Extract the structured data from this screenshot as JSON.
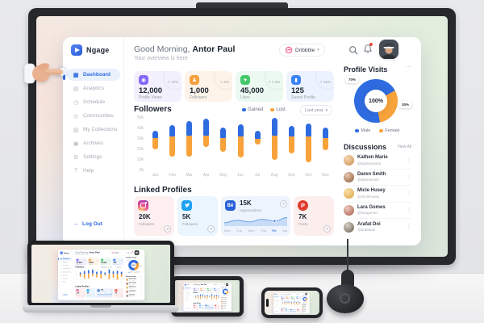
{
  "colors": {
    "accent": "#2f6be0",
    "orange": "#f7a23b",
    "pink": "#ea4c89",
    "alert": "#e94a3f"
  },
  "app": {
    "name": "Ngage"
  },
  "sidebar": {
    "items": [
      {
        "label": "Dashboard",
        "icon": "dashboard-icon",
        "glyph": "▦",
        "active": true
      },
      {
        "label": "Analytics",
        "icon": "analytics-icon",
        "glyph": "▤",
        "active": false
      },
      {
        "label": "Schedule",
        "icon": "schedule-icon",
        "glyph": "◷",
        "active": false
      },
      {
        "label": "Communities",
        "icon": "communities-icon",
        "glyph": "◎",
        "active": false
      },
      {
        "label": "My Collections",
        "icon": "collections-icon",
        "glyph": "▥",
        "active": false
      },
      {
        "label": "Archives",
        "icon": "archives-icon",
        "glyph": "▣",
        "active": false
      },
      {
        "label": "Settings",
        "icon": "settings-icon",
        "glyph": "⚙",
        "active": false
      },
      {
        "label": "Help",
        "icon": "help-icon",
        "glyph": "?",
        "active": false
      }
    ],
    "logout_label": "Log Out"
  },
  "header": {
    "greeting_prefix": "Good Morning,",
    "user_name": "Antor Paul",
    "subtitle": "Your overview is here",
    "account_dropdown": "Dribbble"
  },
  "stats": [
    {
      "value": "12,000",
      "label": "Profile Views",
      "trend": "12%",
      "trend_dir": "up",
      "icon": "eye-icon",
      "glyph": "◉",
      "color": "#8468f5",
      "tint": "#f3f0fd"
    },
    {
      "value": "1,000",
      "label": "Followers",
      "trend": "2%",
      "trend_dir": "down",
      "icon": "user-icon",
      "glyph": "♟",
      "color": "#f5a03c",
      "tint": "#fdf3e8"
    },
    {
      "value": "45,000",
      "label": "Likes",
      "trend": "7.2%",
      "trend_dir": "up",
      "icon": "heart-icon",
      "glyph": "♥",
      "color": "#43c96b",
      "tint": "#ebf9f0"
    },
    {
      "value": "125",
      "label": "Saved Profile",
      "trend": "15%",
      "trend_dir": "up",
      "icon": "bookmark-icon",
      "glyph": "▮",
      "color": "#3b82f6",
      "tint": "#edf3fe"
    }
  ],
  "followers_section": {
    "title": "Followers",
    "legend": [
      {
        "label": "Gained",
        "color": "#2f6be0"
      },
      {
        "label": "Lost",
        "color": "#f7a23b"
      }
    ],
    "range_label": "Last year"
  },
  "chart_data": [
    {
      "type": "bar",
      "title": "Followers",
      "stacked": true,
      "categories": [
        "Jan",
        "Feb",
        "Mar",
        "Apr",
        "May",
        "Jun",
        "Jul",
        "Aug",
        "Sep",
        "Oct",
        "Nov"
      ],
      "series": [
        {
          "name": "Gained",
          "color": "#2f6be0",
          "values": [
            7,
            11,
            14,
            16,
            10,
            12,
            8,
            17,
            10,
            13,
            10
          ]
        },
        {
          "name": "Lost",
          "color": "#f7a23b",
          "values": [
            11,
            19,
            20,
            11,
            13,
            20,
            5,
            23,
            16,
            24,
            12
          ]
        }
      ],
      "span": {
        "top": [
          38,
          43,
          47,
          49,
          41,
          44,
          38,
          50,
          42,
          45,
          41
        ],
        "split": [
          31,
          32,
          33,
          33,
          31,
          32,
          30,
          33,
          32,
          32,
          31
        ],
        "bottom": [
          20,
          13,
          13,
          22,
          18,
          12,
          25,
          10,
          16,
          8,
          19
        ]
      },
      "unit": "k",
      "ylim": [
        0,
        50
      ],
      "yticks": [
        "50k",
        "40k",
        "30k",
        "20k",
        "10k",
        "0k"
      ],
      "legend_position": "top-right",
      "range": "Last year"
    },
    {
      "type": "pie",
      "title": "Profile Visits",
      "labels": [
        "Male",
        "Female"
      ],
      "values": [
        70,
        30
      ],
      "colors": [
        "#2f6be0",
        "#f7a23b"
      ],
      "center_label": "100%"
    },
    {
      "type": "area",
      "title": "Behance appreciations",
      "x": [
        "Mon",
        "Tue",
        "Wed",
        "Thu",
        "Fri",
        "Sat"
      ],
      "values": [
        3,
        6,
        4,
        7,
        5,
        9
      ],
      "highlight_x": "Fri"
    }
  ],
  "profile_visits": {
    "title": "Profile Visits",
    "menu": "⋯",
    "center_label": "100%",
    "male_pct": "70%",
    "female_pct": "30%",
    "legend": [
      {
        "label": "Male",
        "color": "#2f6be0"
      },
      {
        "label": "Female",
        "color": "#f7a23b"
      }
    ]
  },
  "discussions": {
    "title": "Discussions",
    "view_all": "View All",
    "menu_glyph": "⋮",
    "items": [
      {
        "name": "Kathen Marie",
        "handle": "@kathenmarie",
        "avatar": [
          "#f6d7b0",
          "#c98d4f"
        ]
      },
      {
        "name": "Daren Smith",
        "handle": "@darensmith",
        "avatar": [
          "#e8c6b0",
          "#8d5a3b"
        ]
      },
      {
        "name": "Micle Husey",
        "handle": "@miclehusey",
        "avatar": [
          "#f9e0a8",
          "#d9a23f"
        ]
      },
      {
        "name": "Lara Gomes",
        "handle": "@laragomes",
        "avatar": [
          "#f0c9c0",
          "#a05c44"
        ]
      },
      {
        "name": "Arafat Doi",
        "handle": "@arafatdoi",
        "avatar": [
          "#d8d2c8",
          "#6b5d4f"
        ]
      }
    ]
  },
  "linked_profiles": {
    "title": "Linked Profiles",
    "cards": [
      {
        "network": "instagram",
        "icon": "instagram-icon",
        "value": "20K",
        "label": "Followers",
        "tint": "#fdeef0"
      },
      {
        "network": "twitter",
        "icon": "twitter-icon",
        "value": "5K",
        "label": "Followers",
        "tint": "#eaf5fd"
      },
      {
        "network": "behance",
        "icon": "behance-icon",
        "value": "15K",
        "label": "Appreciations",
        "tint": "#eef4fd",
        "days": [
          "Mon",
          "Tue",
          "Wed",
          "Thu",
          "Fri",
          "Sat"
        ],
        "highlight_day": "Fri"
      },
      {
        "network": "pinterest",
        "icon": "pinterest-icon",
        "value": "7K",
        "label": "Posts",
        "tint": "#fdeeee"
      }
    ]
  }
}
